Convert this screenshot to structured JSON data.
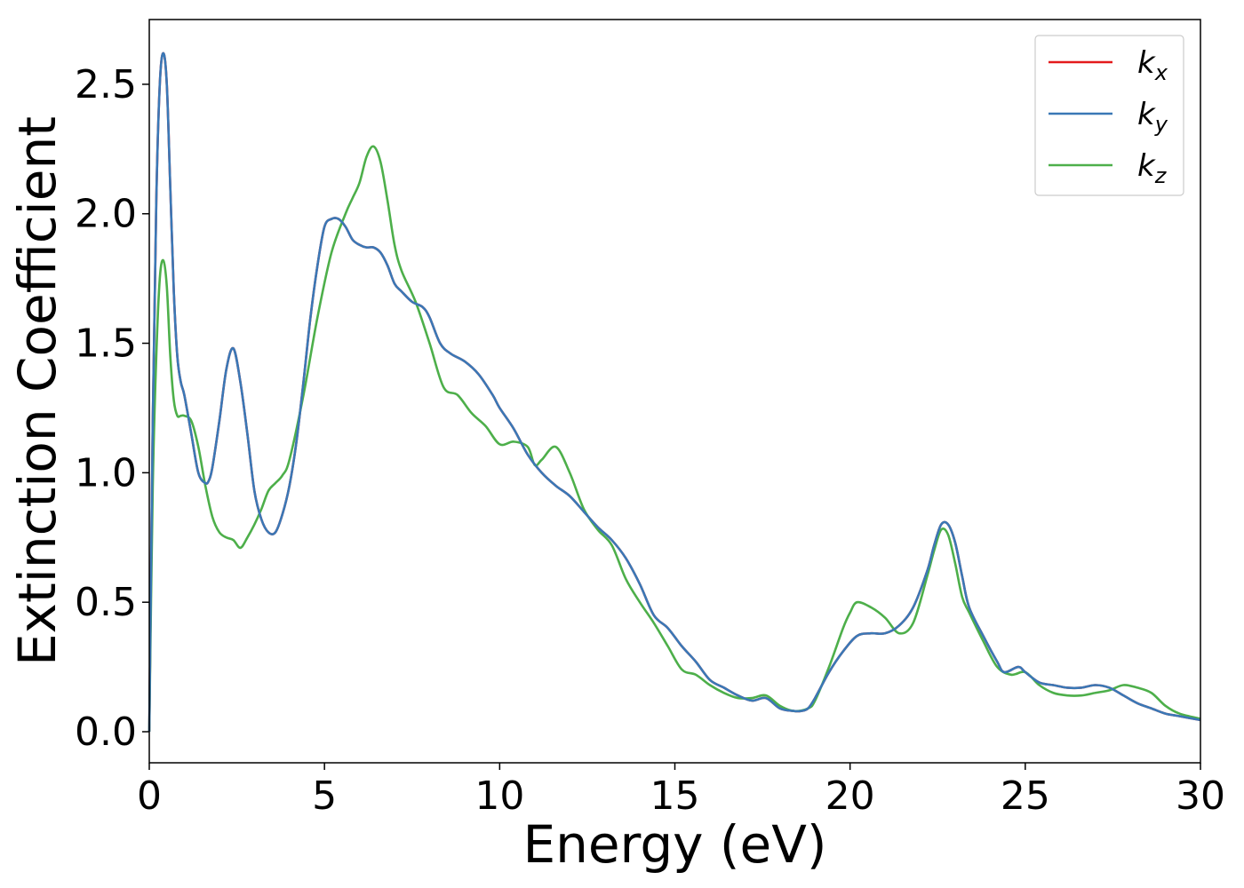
{
  "chart_data": {
    "type": "line",
    "title": "",
    "xlabel": "Energy (eV)",
    "ylabel": "Extinction Coefficient",
    "xlim": [
      0,
      30
    ],
    "ylim": [
      -0.12,
      2.75
    ],
    "xticks": [
      0,
      5,
      10,
      15,
      20,
      25,
      30
    ],
    "xtick_labels": [
      "0",
      "5",
      "10",
      "15",
      "20",
      "25",
      "30"
    ],
    "yticks": [
      0.0,
      0.5,
      1.0,
      1.5,
      2.0,
      2.5
    ],
    "ytick_labels": [
      "0.0",
      "0.5",
      "1.0",
      "1.5",
      "2.0",
      "2.5"
    ],
    "grid": false,
    "legend_position": "top-right",
    "series": [
      {
        "name": "k",
        "subscript": "x",
        "color": "#e41a1c",
        "x": [
          0,
          0.1,
          0.2,
          0.3,
          0.4,
          0.5,
          0.6,
          0.7,
          0.8,
          0.9,
          1.0,
          1.2,
          1.4,
          1.6,
          1.7,
          1.8,
          2.0,
          2.2,
          2.4,
          2.6,
          2.8,
          3.0,
          3.2,
          3.4,
          3.6,
          3.8,
          4.0,
          4.2,
          4.4,
          4.6,
          4.8,
          5.0,
          5.2,
          5.4,
          5.6,
          5.8,
          6.0,
          6.2,
          6.4,
          6.6,
          6.8,
          7.0,
          7.2,
          7.5,
          7.8,
          8.0,
          8.3,
          8.6,
          9.0,
          9.4,
          9.8,
          10.0,
          10.4,
          10.8,
          11.2,
          11.6,
          12.0,
          12.4,
          12.8,
          13.2,
          13.6,
          14.0,
          14.4,
          14.8,
          15.2,
          15.6,
          16.0,
          16.4,
          16.8,
          17.2,
          17.6,
          18.0,
          18.4,
          18.6,
          18.8,
          19.0,
          19.4,
          19.8,
          20.2,
          20.6,
          21.0,
          21.4,
          21.8,
          22.2,
          22.4,
          22.6,
          22.8,
          23.0,
          23.2,
          23.4,
          23.8,
          24.2,
          24.4,
          24.8,
          25.0,
          25.4,
          25.8,
          26.2,
          26.6,
          27.0,
          27.4,
          27.8,
          28.2,
          28.6,
          29.0,
          29.4,
          30.0
        ],
        "y": [
          0.0,
          1.2,
          2.05,
          2.5,
          2.62,
          2.5,
          2.1,
          1.7,
          1.45,
          1.35,
          1.3,
          1.15,
          1.0,
          0.96,
          0.97,
          1.02,
          1.2,
          1.4,
          1.48,
          1.35,
          1.15,
          0.93,
          0.82,
          0.77,
          0.77,
          0.84,
          0.95,
          1.12,
          1.35,
          1.6,
          1.8,
          1.95,
          1.98,
          1.98,
          1.95,
          1.9,
          1.88,
          1.87,
          1.87,
          1.85,
          1.8,
          1.73,
          1.7,
          1.66,
          1.64,
          1.6,
          1.5,
          1.46,
          1.43,
          1.38,
          1.3,
          1.25,
          1.17,
          1.07,
          1.0,
          0.95,
          0.91,
          0.85,
          0.79,
          0.74,
          0.67,
          0.57,
          0.45,
          0.4,
          0.33,
          0.27,
          0.2,
          0.17,
          0.14,
          0.12,
          0.13,
          0.09,
          0.08,
          0.08,
          0.09,
          0.13,
          0.23,
          0.31,
          0.37,
          0.38,
          0.38,
          0.41,
          0.48,
          0.62,
          0.72,
          0.8,
          0.8,
          0.73,
          0.6,
          0.48,
          0.37,
          0.27,
          0.23,
          0.25,
          0.23,
          0.19,
          0.18,
          0.17,
          0.17,
          0.18,
          0.17,
          0.14,
          0.11,
          0.09,
          0.07,
          0.06,
          0.045
        ]
      },
      {
        "name": "k",
        "subscript": "y",
        "color": "#3a78b6",
        "x": [
          0,
          0.1,
          0.2,
          0.3,
          0.4,
          0.5,
          0.6,
          0.7,
          0.8,
          0.9,
          1.0,
          1.2,
          1.4,
          1.6,
          1.7,
          1.8,
          2.0,
          2.2,
          2.4,
          2.6,
          2.8,
          3.0,
          3.2,
          3.4,
          3.6,
          3.8,
          4.0,
          4.2,
          4.4,
          4.6,
          4.8,
          5.0,
          5.2,
          5.4,
          5.6,
          5.8,
          6.0,
          6.2,
          6.4,
          6.6,
          6.8,
          7.0,
          7.2,
          7.5,
          7.8,
          8.0,
          8.3,
          8.6,
          9.0,
          9.4,
          9.8,
          10.0,
          10.4,
          10.8,
          11.2,
          11.6,
          12.0,
          12.4,
          12.8,
          13.2,
          13.6,
          14.0,
          14.4,
          14.8,
          15.2,
          15.6,
          16.0,
          16.4,
          16.8,
          17.2,
          17.6,
          18.0,
          18.4,
          18.6,
          18.8,
          19.0,
          19.4,
          19.8,
          20.2,
          20.6,
          21.0,
          21.4,
          21.8,
          22.2,
          22.4,
          22.6,
          22.8,
          23.0,
          23.2,
          23.4,
          23.8,
          24.2,
          24.4,
          24.8,
          25.0,
          25.4,
          25.8,
          26.2,
          26.6,
          27.0,
          27.4,
          27.8,
          28.2,
          28.6,
          29.0,
          29.4,
          30.0
        ],
        "y": [
          0.0,
          1.2,
          2.05,
          2.5,
          2.62,
          2.5,
          2.1,
          1.7,
          1.45,
          1.35,
          1.3,
          1.15,
          1.0,
          0.96,
          0.97,
          1.02,
          1.2,
          1.4,
          1.48,
          1.35,
          1.15,
          0.93,
          0.82,
          0.77,
          0.77,
          0.84,
          0.95,
          1.12,
          1.35,
          1.6,
          1.8,
          1.95,
          1.98,
          1.98,
          1.95,
          1.9,
          1.88,
          1.87,
          1.87,
          1.85,
          1.8,
          1.73,
          1.7,
          1.66,
          1.64,
          1.6,
          1.5,
          1.46,
          1.43,
          1.38,
          1.3,
          1.25,
          1.17,
          1.07,
          1.0,
          0.95,
          0.91,
          0.85,
          0.79,
          0.74,
          0.67,
          0.57,
          0.45,
          0.4,
          0.33,
          0.27,
          0.2,
          0.17,
          0.14,
          0.12,
          0.13,
          0.09,
          0.08,
          0.08,
          0.09,
          0.13,
          0.23,
          0.31,
          0.37,
          0.38,
          0.38,
          0.41,
          0.48,
          0.62,
          0.72,
          0.8,
          0.8,
          0.73,
          0.6,
          0.48,
          0.37,
          0.27,
          0.23,
          0.25,
          0.23,
          0.19,
          0.18,
          0.17,
          0.17,
          0.18,
          0.17,
          0.14,
          0.11,
          0.09,
          0.07,
          0.06,
          0.045
        ]
      },
      {
        "name": "k",
        "subscript": "z",
        "color": "#4daf4a",
        "x": [
          0,
          0.1,
          0.2,
          0.3,
          0.4,
          0.5,
          0.6,
          0.7,
          0.8,
          0.9,
          1.0,
          1.2,
          1.4,
          1.6,
          1.8,
          2.0,
          2.2,
          2.4,
          2.6,
          2.8,
          3.0,
          3.2,
          3.4,
          3.6,
          3.8,
          4.0,
          4.4,
          4.8,
          5.2,
          5.6,
          5.8,
          6.0,
          6.2,
          6.4,
          6.6,
          6.8,
          7.0,
          7.2,
          7.6,
          8.0,
          8.4,
          8.8,
          9.2,
          9.6,
          10.0,
          10.4,
          10.8,
          11.0,
          11.2,
          11.6,
          12.0,
          12.4,
          12.8,
          13.2,
          13.6,
          14.0,
          14.4,
          14.8,
          15.2,
          15.6,
          16.0,
          16.4,
          16.8,
          17.2,
          17.6,
          18.0,
          18.4,
          18.8,
          19.0,
          19.4,
          19.8,
          20.0,
          20.2,
          20.6,
          21.0,
          21.4,
          21.8,
          22.2,
          22.4,
          22.6,
          22.8,
          23.0,
          23.2,
          23.4,
          23.8,
          24.2,
          24.6,
          25.0,
          25.4,
          25.8,
          26.2,
          26.6,
          27.0,
          27.4,
          27.8,
          28.2,
          28.6,
          29.0,
          29.4,
          30.0
        ],
        "y": [
          0.0,
          0.95,
          1.45,
          1.75,
          1.82,
          1.72,
          1.45,
          1.28,
          1.22,
          1.22,
          1.22,
          1.2,
          1.1,
          0.95,
          0.83,
          0.77,
          0.75,
          0.74,
          0.71,
          0.75,
          0.8,
          0.86,
          0.93,
          0.96,
          0.99,
          1.05,
          1.3,
          1.6,
          1.85,
          2.0,
          2.06,
          2.12,
          2.22,
          2.26,
          2.2,
          2.05,
          1.88,
          1.78,
          1.66,
          1.5,
          1.33,
          1.3,
          1.23,
          1.18,
          1.11,
          1.12,
          1.1,
          1.03,
          1.05,
          1.1,
          1.0,
          0.86,
          0.78,
          0.72,
          0.59,
          0.5,
          0.42,
          0.33,
          0.24,
          0.22,
          0.18,
          0.15,
          0.13,
          0.13,
          0.14,
          0.1,
          0.08,
          0.09,
          0.12,
          0.25,
          0.4,
          0.46,
          0.5,
          0.48,
          0.44,
          0.38,
          0.42,
          0.6,
          0.7,
          0.78,
          0.76,
          0.65,
          0.52,
          0.46,
          0.35,
          0.25,
          0.22,
          0.23,
          0.18,
          0.15,
          0.14,
          0.14,
          0.15,
          0.16,
          0.18,
          0.17,
          0.15,
          0.1,
          0.07,
          0.05
        ]
      }
    ]
  }
}
